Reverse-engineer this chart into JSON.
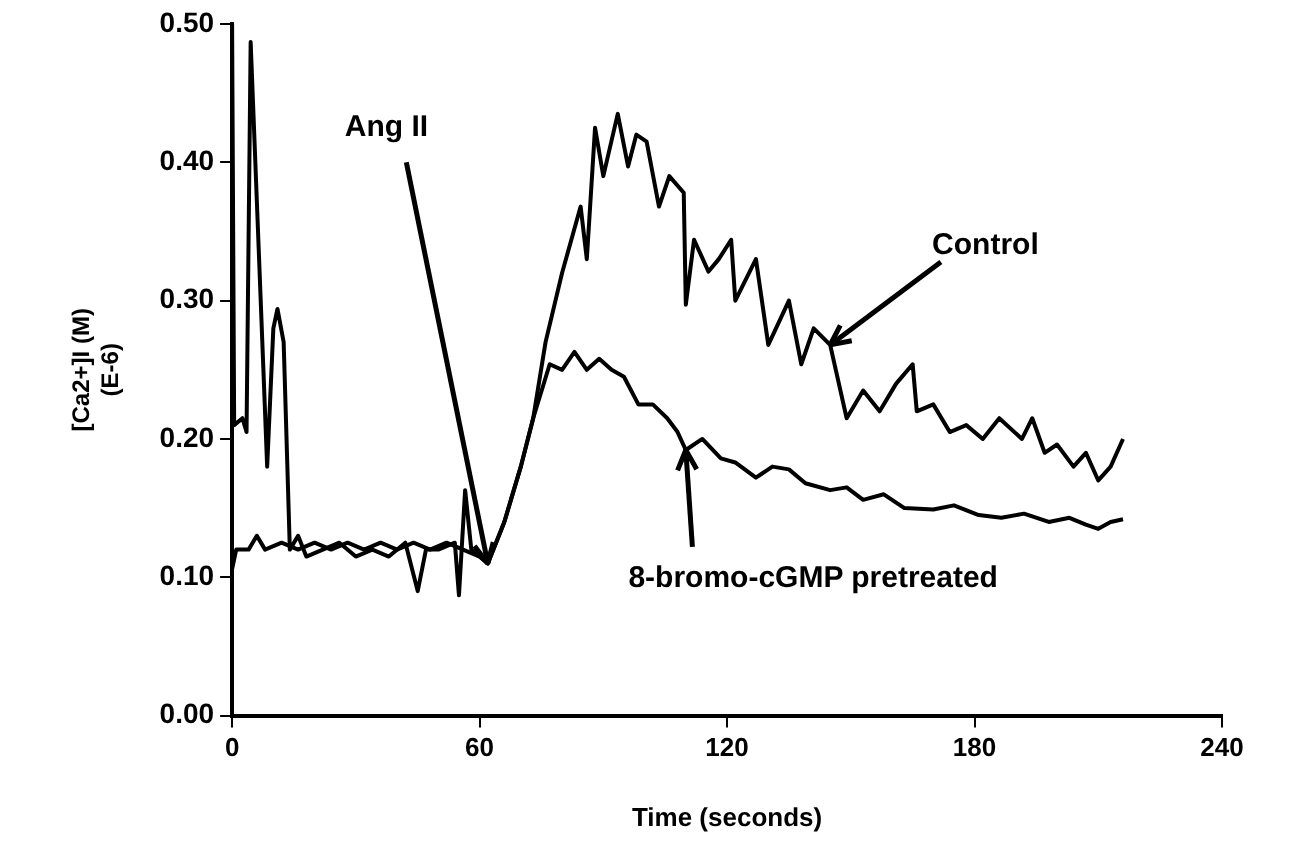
{
  "chart_data": {
    "type": "line",
    "xlabel": "Time (seconds)",
    "ylabel": "[Ca2+]I (M)\n(E-6)",
    "xlim": [
      0,
      240
    ],
    "xticks": [
      0,
      60,
      120,
      180,
      240
    ],
    "ylim": [
      0,
      0.5
    ],
    "yticks": [
      {
        "value": 0,
        "label": "0.00"
      },
      {
        "value": 0.1,
        "label": "0.10"
      },
      {
        "value": 0.2,
        "label": "0.20"
      },
      {
        "value": 0.3,
        "label": "0.30"
      },
      {
        "value": 0.4,
        "label": "0.40"
      },
      {
        "value": 0.5,
        "label": "0.50"
      }
    ],
    "grid": false,
    "legend": false,
    "marker": "none",
    "line_style": "solid",
    "series": [
      {
        "color": "#000000",
        "x": [
          0,
          0.5,
          2.5,
          3.5,
          4.5,
          8.5,
          10,
          11,
          12.5,
          14,
          16,
          18,
          22,
          26,
          30,
          34,
          38,
          42,
          45,
          47,
          50,
          54,
          55,
          56.5,
          58,
          60,
          62,
          66,
          70,
          73,
          76,
          80,
          84.5,
          86,
          88,
          90,
          93.5,
          96,
          98,
          100.5,
          103.5,
          106,
          109.5,
          110,
          112,
          115.5,
          118,
          121,
          122,
          127,
          130,
          135,
          138,
          141,
          145,
          149,
          153,
          157,
          161,
          165,
          166,
          170,
          174,
          178,
          182,
          186,
          191.5,
          194,
          197,
          200,
          204,
          207,
          210,
          213,
          216
        ],
        "values": [
          0.5,
          0.21,
          0.215,
          0.205,
          0.487,
          0.18,
          0.28,
          0.294,
          0.27,
          0.12,
          0.13,
          0.115,
          0.12,
          0.125,
          0.115,
          0.12,
          0.115,
          0.125,
          0.09,
          0.12,
          0.12,
          0.125,
          0.087,
          0.163,
          0.12,
          0.115,
          0.11,
          0.14,
          0.18,
          0.215,
          0.27,
          0.32,
          0.368,
          0.33,
          0.425,
          0.39,
          0.435,
          0.397,
          0.42,
          0.415,
          0.368,
          0.39,
          0.378,
          0.297,
          0.344,
          0.321,
          0.33,
          0.344,
          0.3,
          0.33,
          0.268,
          0.3,
          0.254,
          0.28,
          0.268,
          0.215,
          0.235,
          0.22,
          0.24,
          0.254,
          0.22,
          0.225,
          0.205,
          0.21,
          0.2,
          0.215,
          0.2,
          0.215,
          0.19,
          0.196,
          0.18,
          0.19,
          0.17,
          0.18,
          0.2
        ]
      },
      {
        "color": "#000000",
        "x": [
          0,
          1,
          4,
          6,
          8,
          12,
          16,
          20,
          24,
          28,
          32,
          36,
          40,
          44,
          48,
          52,
          56,
          60,
          62,
          66,
          70,
          73,
          77,
          80,
          83,
          86,
          89,
          92,
          95,
          98.5,
          102,
          105.5,
          108,
          110,
          114,
          118.5,
          122,
          127,
          131,
          135,
          139,
          145,
          149,
          153,
          158,
          163,
          170,
          175,
          181,
          186.5,
          192,
          198,
          203,
          207,
          210,
          213,
          216
        ],
        "values": [
          0.106,
          0.12,
          0.12,
          0.13,
          0.12,
          0.125,
          0.12,
          0.125,
          0.12,
          0.125,
          0.12,
          0.125,
          0.12,
          0.125,
          0.12,
          0.125,
          0.12,
          0.115,
          0.11,
          0.14,
          0.18,
          0.215,
          0.254,
          0.25,
          0.263,
          0.25,
          0.258,
          0.25,
          0.245,
          0.225,
          0.225,
          0.215,
          0.205,
          0.192,
          0.2,
          0.186,
          0.183,
          0.172,
          0.18,
          0.178,
          0.168,
          0.163,
          0.165,
          0.156,
          0.16,
          0.15,
          0.149,
          0.152,
          0.145,
          0.143,
          0.146,
          0.14,
          0.143,
          0.138,
          0.135,
          0.14,
          0.142
        ]
      }
    ],
    "annotations": [
      {
        "text": "Ang II",
        "x": 62,
        "y": 0.11
      },
      {
        "text": "Control",
        "x": 145,
        "y": 0.268
      },
      {
        "text": "8-bromo-cGMP pretreated",
        "x": 110,
        "y": 0.192
      }
    ]
  }
}
